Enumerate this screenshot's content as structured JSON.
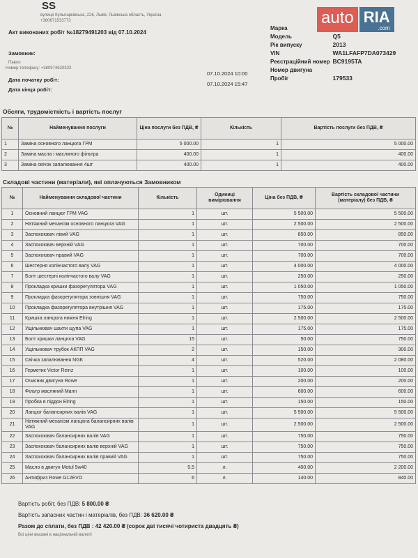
{
  "header": {
    "company": "SS",
    "address": "вулиця Кульпарківська, 226, Львів, Львівська область, Україна",
    "phone": "+380671533773"
  },
  "logo": {
    "left": "auto",
    "right": "RIA",
    "suffix": ".com"
  },
  "act": {
    "title": "Акт виконаних робіт №18279491203 від 07.10.2024"
  },
  "customer": {
    "label": "Замовник:",
    "name": "Павло",
    "phone": "Номер телефону: +380974620323"
  },
  "work_start": {
    "label": "Дата початку робіт:",
    "value": "07.10.2024 10:00"
  },
  "work_end": {
    "label": "Дата кінця робіт:",
    "value": "07.10.2024 15:47"
  },
  "vehicle": [
    {
      "label": "Марка"
    },
    {
      "label": "Модель",
      "value": "Q5"
    },
    {
      "label": "Рік випуску",
      "value": "2013"
    },
    {
      "label": "VIN",
      "value": "WA1LFAFP7DA073429"
    },
    {
      "label": "Реєстраційний номер",
      "value": "BC9195TA"
    },
    {
      "label": "Номер двигуна"
    },
    {
      "label": "Пробіг",
      "value": "179533"
    }
  ],
  "services": {
    "title": "Обсяги, трудомісткість і вартість послуг",
    "headers": [
      "№",
      "Найменування послуги",
      "Ціна послуги без ПДВ, ₴",
      "Кількість",
      "Вартість послуги без ПДВ, ₴"
    ],
    "rows": [
      [
        "1",
        "Заміна основного ланцюга ГРМ",
        "5 000.00",
        "1",
        "5 000.00"
      ],
      [
        "2",
        "Заміна масла і масляного фільтра",
        "400.00",
        "1",
        "400.00"
      ],
      [
        "3",
        "Заміна свічок запалювання 4шт",
        "400.00",
        "1",
        "400.00"
      ]
    ]
  },
  "parts": {
    "title": "Складові частини (матеріали), які оплачуються Замовником",
    "headers": [
      "№",
      "Найменування складової частини",
      "Кількість",
      "Одиниці вимірювання",
      "Ціна без ПДВ, ₴",
      "Вартість складової частини (матеріалу) без ПДВ, ₴"
    ],
    "rows": [
      [
        "1",
        "Основний ланцюг ГРМ VAG",
        "1",
        "шт.",
        "5 500.00",
        "5 500.00"
      ],
      [
        "2",
        "Натяжний механізм основного ланцюга VAG",
        "1",
        "шт.",
        "2 500.00",
        "2 500.00"
      ],
      [
        "3",
        "Заспокоювач лівий VAG",
        "1",
        "шт.",
        "850.00",
        "850.00"
      ],
      [
        "4",
        "Заспокоювач верхній VAG",
        "1",
        "шт.",
        "700.00",
        "700.00"
      ],
      [
        "5",
        "Заспокоювач правий VAG",
        "1",
        "шт.",
        "700.00",
        "700.00"
      ],
      [
        "6",
        "Шестерня колінчастого валу VAG",
        "1",
        "шт.",
        "4 000.00",
        "4 000.00"
      ],
      [
        "7",
        "Болт шестерні колінчастого валу VAG",
        "1",
        "шт.",
        "250.00",
        "250.00"
      ],
      [
        "8",
        "Прокладка кришки фазорегулятора VAG",
        "1",
        "шт.",
        "1 050.00",
        "1 050.00"
      ],
      [
        "9",
        "Прокладка фазорегулятора зовнішня VAG",
        "1",
        "шт.",
        "750.00",
        "750.00"
      ],
      [
        "10",
        "Прокладка фазорегулятора внутрішня VAG",
        "1",
        "шт.",
        "175.00",
        "175.00"
      ],
      [
        "11",
        "Кришка ланцюга нижня Elring",
        "1",
        "шт.",
        "2 500.00",
        "2 500.00"
      ],
      [
        "12",
        "Ущільнювач шахти щупа VAG",
        "1",
        "шт.",
        "175.00",
        "175.00"
      ],
      [
        "13",
        "Болт кришки ланцюга VAG",
        "15",
        "шт.",
        "50.00",
        "750.00"
      ],
      [
        "14",
        "Ущільнювач трубок АКПП VAG",
        "2",
        "шт.",
        "150.00",
        "300.00"
      ],
      [
        "15",
        "Свічка запалювання NGK",
        "4",
        "шт.",
        "520.00",
        "2 080.00"
      ],
      [
        "16",
        "Герметик Victor Reinz",
        "1",
        "шт.",
        "100.00",
        "100.00"
      ],
      [
        "17",
        "Очисник двигуна Rowe",
        "1",
        "шт.",
        "200.00",
        "200.00"
      ],
      [
        "18",
        "Фільтр масляний Mann",
        "1",
        "шт.",
        "600.00",
        "600.00"
      ],
      [
        "19",
        "Пробка в піддон Elring",
        "1",
        "шт.",
        "150.00",
        "150.00"
      ],
      [
        "20",
        "Ланцюг балансирних валів VAG",
        "1",
        "шт.",
        "5 500.00",
        "5 500.00"
      ],
      [
        "21",
        "Натяжний механізм ланцюга балансирних валів VAG",
        "1",
        "шт.",
        "2 500.00",
        "2 500.00"
      ],
      [
        "22",
        "Заспокоювач балансирних валів VAG",
        "1",
        "шт.",
        "750.00",
        "750.00"
      ],
      [
        "23",
        "Заспокоювач балансирних валів верхній VAG",
        "1",
        "шт.",
        "750.00",
        "750.00"
      ],
      [
        "24",
        "Заспокоювач балансирних валів правий VAG",
        "1",
        "шт.",
        "750.00",
        "750.00"
      ],
      [
        "25",
        "Масло в двигун Motul 5w40",
        "5.5",
        "л.",
        "400.00",
        "2 200.00"
      ],
      [
        "26",
        "Антифриз Rowe G12EVO",
        "6",
        "л.",
        "140.00",
        "840.00"
      ]
    ]
  },
  "totals": [
    {
      "label": "Вартість робіт, без ПДВ:",
      "value": "5 800.00 ₴"
    },
    {
      "label": "Вартість запасних частин і матеріалів, без ПДВ:",
      "value": "36 620.00 ₴"
    },
    {
      "label": "Разом до сплати, без ПДВ :",
      "value": "42 420.00 ₴ (сорок дві тисячі чотириста двадцять ₴)"
    }
  ],
  "note": "Всі ціни вказані в національній валюті"
}
